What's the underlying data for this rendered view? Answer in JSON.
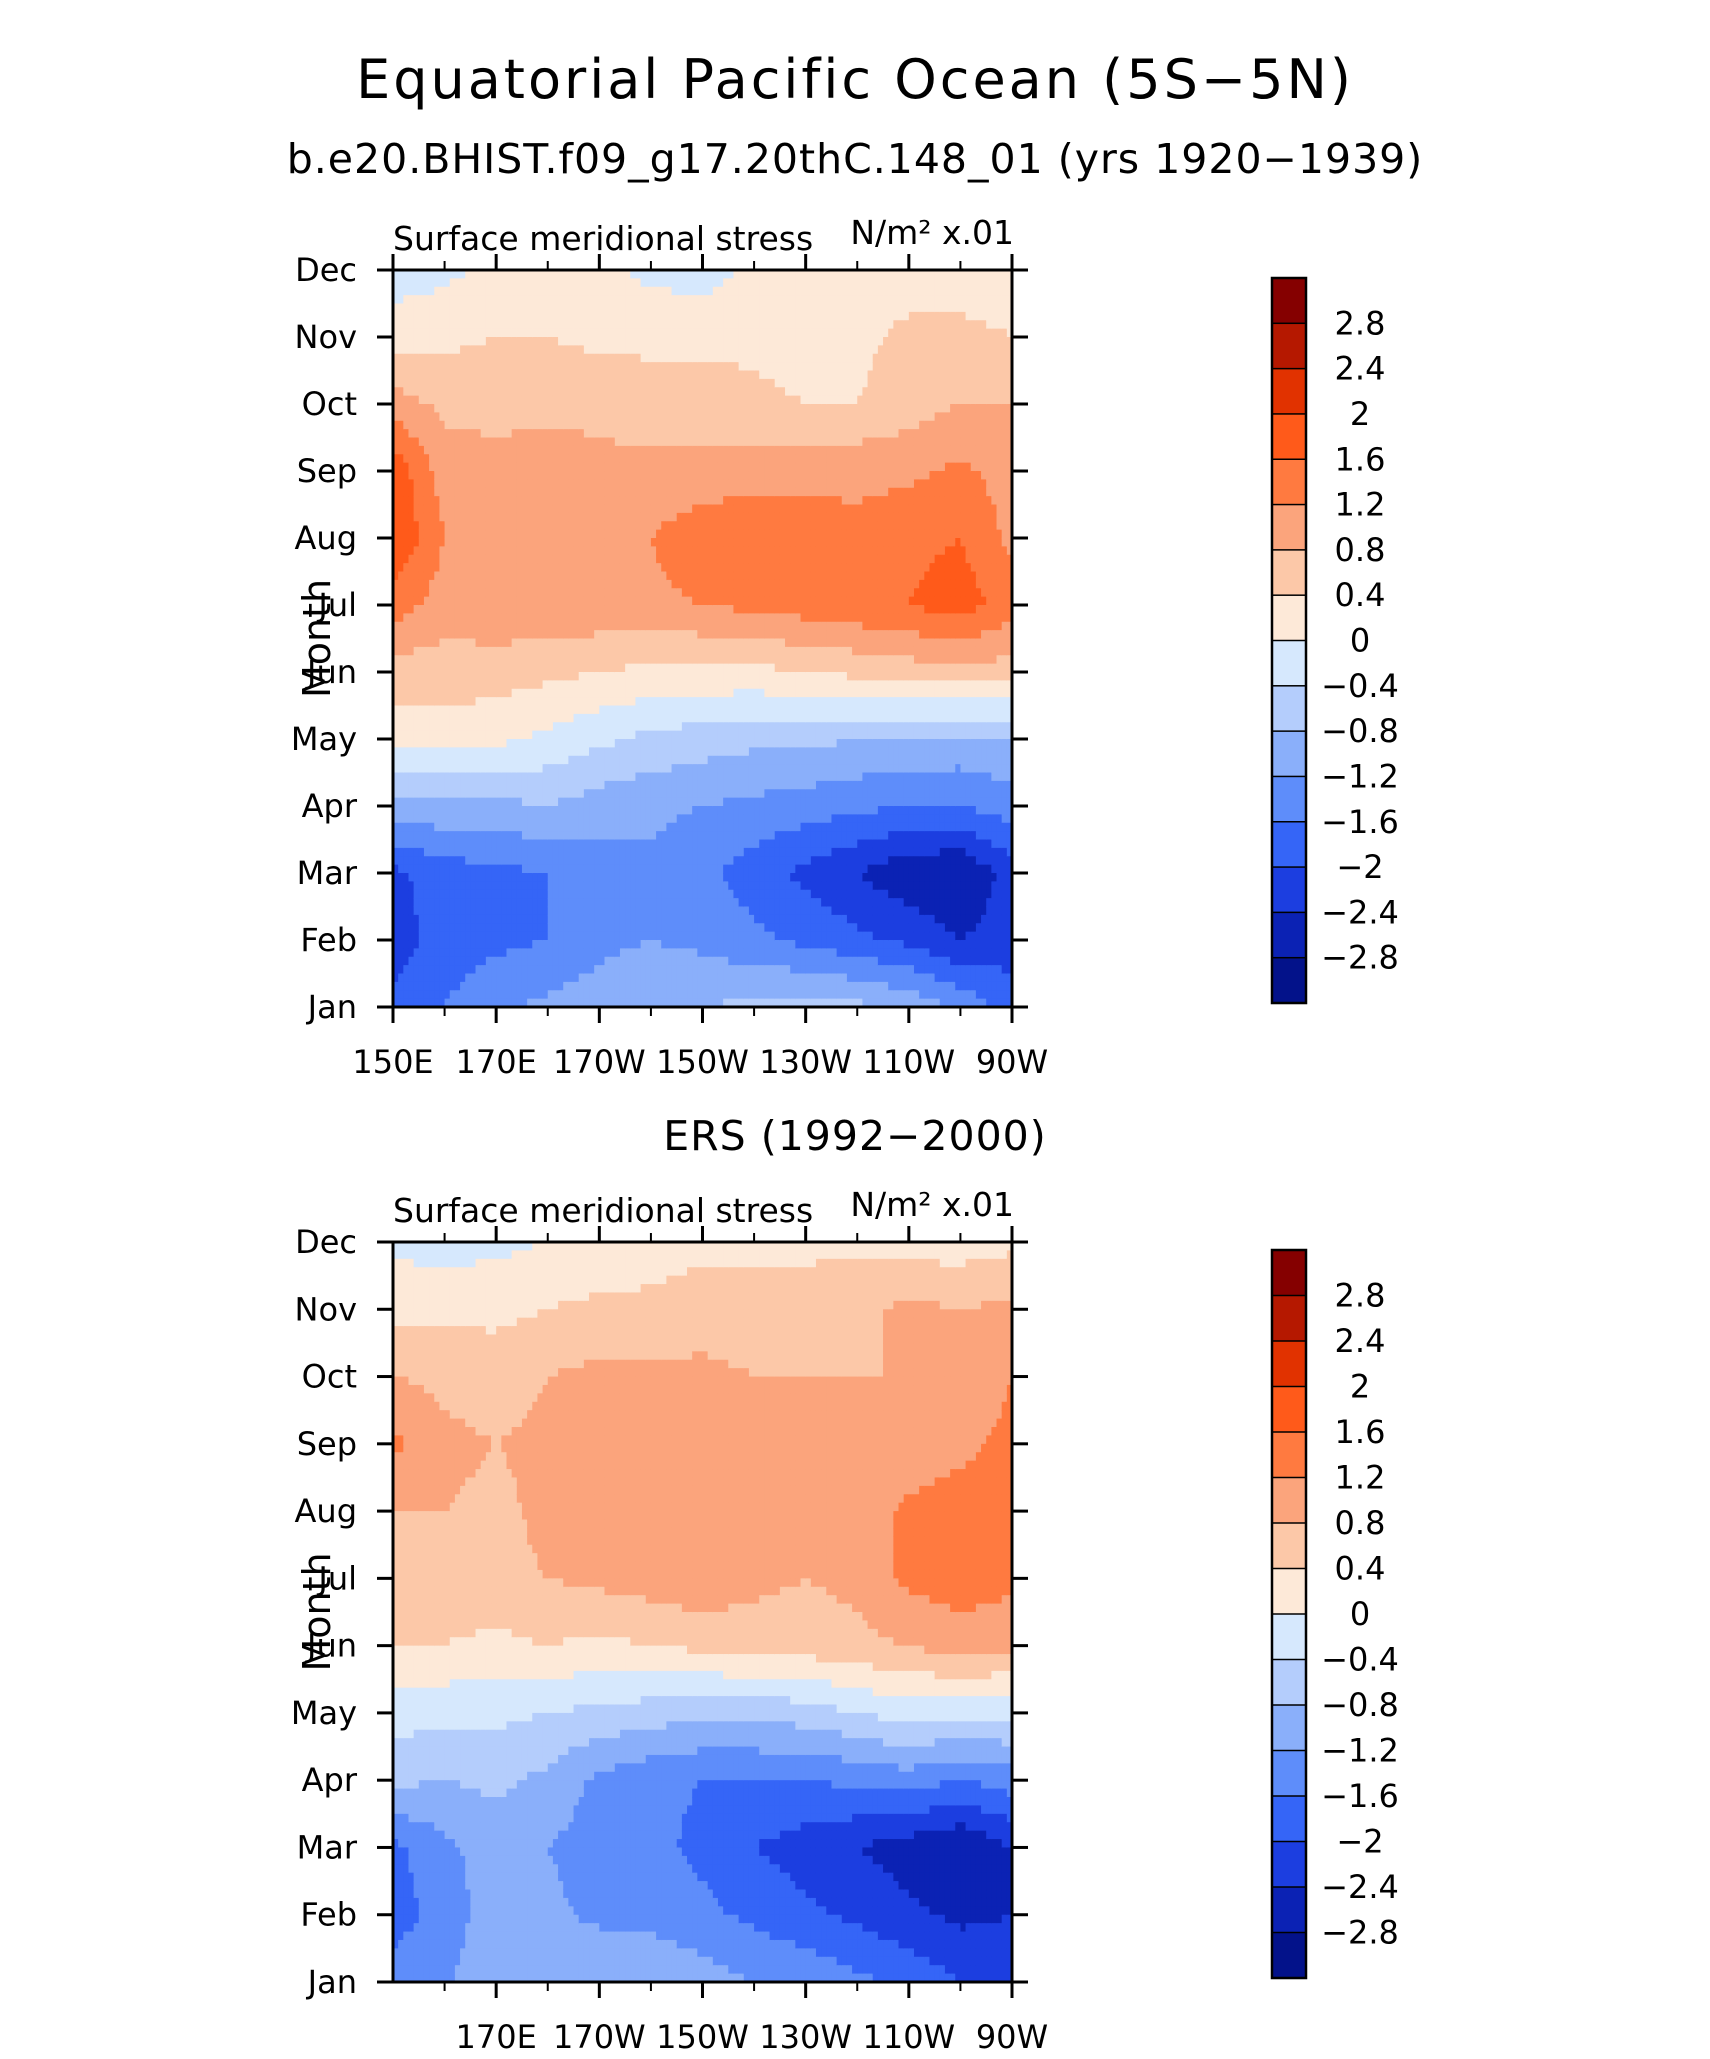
{
  "header": {
    "title": "Equatorial Pacific Ocean (5S−5N)",
    "subtitle": "b.e20.BHIST.f09_g17.20thC.148_01 (yrs 1920−1939)"
  },
  "colorbar": {
    "labels": [
      "2.8",
      "2.4",
      "2",
      "1.6",
      "1.2",
      "0.8",
      "0.4",
      "0",
      "−0.4",
      "−0.8",
      "−1.2",
      "−1.6",
      "−2",
      "−2.4",
      "−2.8"
    ],
    "colors": [
      "#850000",
      "#b51800",
      "#e13200",
      "#ff5a1a",
      "#ff7a40",
      "#fba47c",
      "#fcc8a8",
      "#fde9d8",
      "#d6e8fd",
      "#b4cdfc",
      "#8aaffa",
      "#5e8dfa",
      "#3565f7",
      "#1c3ee0",
      "#0b22b4",
      "#03128a"
    ]
  },
  "chart_data": [
    {
      "type": "heatmap",
      "title": "",
      "left_label": "Surface meridional stress",
      "right_label": "N/m² x.01",
      "ylabel": "Month",
      "xticks": [
        "150E",
        "170E",
        "170W",
        "150W",
        "130W",
        "110W",
        "90W"
      ],
      "yticks": [
        "Jan",
        "Feb",
        "Mar",
        "Apr",
        "May",
        "Jun",
        "Jul",
        "Aug",
        "Sep",
        "Oct",
        "Nov",
        "Dec"
      ],
      "xlim": [
        150,
        270
      ],
      "ylim": [
        1,
        12
      ],
      "levels": [
        -2.8,
        -2.4,
        -2,
        -1.6,
        -1.2,
        -0.8,
        -0.4,
        0,
        0.4,
        0.8,
        1.2,
        1.6,
        2,
        2.4,
        2.8
      ],
      "x": [
        150,
        160,
        170,
        180,
        190,
        200,
        210,
        220,
        230,
        240,
        250,
        260,
        270
      ],
      "y": [
        1,
        2,
        3,
        4,
        5,
        6,
        7,
        8,
        9,
        10,
        11,
        12
      ],
      "z": [
        [
          -1.9,
          -1.6,
          -1.3,
          -1.1,
          -1.0,
          -0.9,
          -0.8,
          -0.7,
          -0.6,
          -0.7,
          -0.9,
          -1.3,
          -1.8
        ],
        [
          -2.2,
          -1.8,
          -1.7,
          -1.6,
          -1.3,
          -1.2,
          -1.3,
          -1.5,
          -1.7,
          -1.9,
          -2.1,
          -2.4,
          -2.2
        ],
        [
          -2.1,
          -1.8,
          -1.7,
          -1.6,
          -1.4,
          -1.3,
          -1.5,
          -1.8,
          -2.1,
          -2.4,
          -2.7,
          -2.8,
          -2.2
        ],
        [
          -0.9,
          -0.9,
          -0.9,
          -0.8,
          -1.0,
          -1.1,
          -1.2,
          -1.3,
          -1.4,
          -1.5,
          -1.6,
          -1.6,
          -1.4
        ],
        [
          0.2,
          0.2,
          0.1,
          -0.1,
          -0.3,
          -0.5,
          -0.6,
          -0.7,
          -0.7,
          -0.8,
          -0.8,
          -0.9,
          -0.8
        ],
        [
          0.6,
          0.6,
          0.6,
          0.5,
          0.4,
          0.3,
          0.3,
          0.3,
          0.4,
          0.5,
          0.6,
          0.7,
          0.6
        ],
        [
          1.4,
          1.0,
          1.1,
          1.1,
          1.1,
          1.1,
          1.2,
          1.3,
          1.4,
          1.5,
          1.6,
          1.8,
          1.4
        ],
        [
          2.0,
          1.2,
          1.1,
          1.1,
          1.1,
          1.2,
          1.5,
          1.6,
          1.4,
          1.3,
          1.5,
          1.6,
          1.1
        ],
        [
          1.9,
          1.0,
          0.9,
          1.0,
          0.9,
          0.9,
          0.9,
          1.0,
          1.1,
          1.1,
          1.1,
          1.3,
          1.0
        ],
        [
          1.0,
          0.7,
          0.7,
          0.7,
          0.7,
          0.6,
          0.6,
          0.5,
          0.4,
          0.4,
          0.6,
          0.8,
          0.8
        ],
        [
          0.2,
          0.3,
          0.4,
          0.4,
          0.3,
          0.3,
          0.3,
          0.3,
          0.2,
          0.3,
          0.5,
          0.5,
          0.4
        ],
        [
          -0.2,
          -0.1,
          0.1,
          0.2,
          0.1,
          -0.1,
          -0.2,
          0.1,
          0.2,
          0.2,
          0.2,
          0.2,
          0.2
        ]
      ]
    },
    {
      "type": "heatmap",
      "title": "ERS (1992−2000)",
      "left_label": "Surface meridional stress",
      "right_label": "N/m² x.01",
      "ylabel": "Month",
      "xticks": [
        "170E",
        "170W",
        "150W",
        "130W",
        "110W",
        "90W"
      ],
      "yticks": [
        "Jan",
        "Feb",
        "Mar",
        "Apr",
        "May",
        "Jun",
        "Jul",
        "Aug",
        "Sep",
        "Oct",
        "Nov",
        "Dec"
      ],
      "xlim": [
        150,
        270
      ],
      "ylim": [
        1,
        12
      ],
      "levels": [
        -2.8,
        -2.4,
        -2,
        -1.6,
        -1.2,
        -0.8,
        -0.4,
        0,
        0.4,
        0.8,
        1.2,
        1.6,
        2,
        2.4,
        2.8
      ],
      "x": [
        150,
        160,
        170,
        180,
        190,
        200,
        210,
        220,
        230,
        240,
        250,
        260,
        270
      ],
      "y": [
        1,
        2,
        3,
        4,
        5,
        6,
        7,
        8,
        9,
        10,
        11,
        12
      ],
      "z": [
        [
          -1.4,
          -1.3,
          -0.8,
          -1.0,
          -0.8,
          -0.9,
          -1.0,
          -1.2,
          -1.3,
          -1.5,
          -1.7,
          -2.0,
          -2.2
        ],
        [
          -1.8,
          -1.4,
          -1.0,
          -1.1,
          -1.3,
          -1.3,
          -1.5,
          -1.7,
          -1.9,
          -2.1,
          -2.3,
          -2.5,
          -2.4
        ],
        [
          -1.7,
          -1.3,
          -1.0,
          -1.2,
          -1.4,
          -1.5,
          -1.7,
          -2.0,
          -2.2,
          -2.4,
          -2.6,
          -2.8,
          -2.4
        ],
        [
          -0.7,
          -0.8,
          -0.7,
          -0.9,
          -1.3,
          -1.5,
          -1.6,
          -1.6,
          -1.6,
          -1.5,
          -1.4,
          -1.6,
          -1.4
        ],
        [
          -0.2,
          -0.3,
          -0.3,
          -0.4,
          -0.5,
          -0.6,
          -0.7,
          -0.7,
          -0.6,
          -0.4,
          -0.2,
          -0.3,
          -0.3
        ],
        [
          0.4,
          0.4,
          0.3,
          0.4,
          0.3,
          0.4,
          0.5,
          0.6,
          0.6,
          0.7,
          0.8,
          1.0,
          0.9
        ],
        [
          0.7,
          0.6,
          0.7,
          0.8,
          0.9,
          1.0,
          1.1,
          0.9,
          0.8,
          0.9,
          1.3,
          1.4,
          1.3
        ],
        [
          0.8,
          0.8,
          0.7,
          0.9,
          1.0,
          1.1,
          1.1,
          1.0,
          1.0,
          0.9,
          1.3,
          1.4,
          1.3
        ],
        [
          1.3,
          0.9,
          0.8,
          0.9,
          1.0,
          1.1,
          1.0,
          1.0,
          1.0,
          0.9,
          0.9,
          1.1,
          1.3
        ],
        [
          0.8,
          0.7,
          0.6,
          0.8,
          0.9,
          0.9,
          0.9,
          0.8,
          0.8,
          0.8,
          0.8,
          0.9,
          1.2
        ],
        [
          0.3,
          0.3,
          0.3,
          0.4,
          0.5,
          0.5,
          0.6,
          0.6,
          0.6,
          0.7,
          0.9,
          0.8,
          0.9
        ],
        [
          -0.1,
          -0.2,
          -0.1,
          0.0,
          0.1,
          0.2,
          0.3,
          0.3,
          0.3,
          0.3,
          0.2,
          0.2,
          0.3
        ]
      ]
    }
  ]
}
